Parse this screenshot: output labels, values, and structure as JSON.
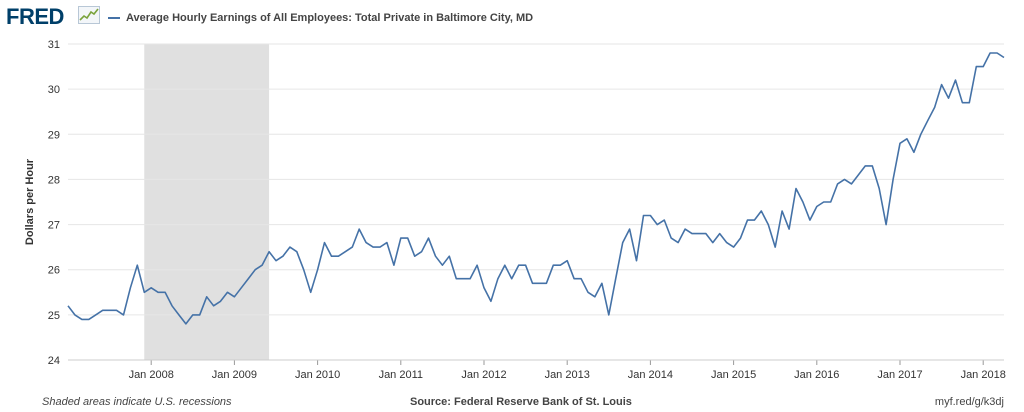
{
  "header": {
    "logo_text": "FRED",
    "logo_icon": "chart-line-icon",
    "legend_label": "Average Hourly Earnings of All Employees: Total Private in Baltimore City, MD"
  },
  "footer": {
    "recession_note": "Shaded areas indicate U.S. recessions",
    "source": "Source: Federal Reserve Bank of St. Louis",
    "link": "myf.red/g/k3dj"
  },
  "colors": {
    "series": "#4572a7",
    "recession": "#e0e0e0",
    "grid": "#e6e6e6",
    "logo": "#003f69"
  },
  "chart_data": {
    "type": "line",
    "title": "",
    "ylabel": "Dollars per Hour",
    "xlabel": "",
    "ylim": [
      24,
      31
    ],
    "y_ticks": [
      24,
      25,
      26,
      27,
      28,
      29,
      30,
      31
    ],
    "x_ticks": [
      "Jan 2008",
      "Jan 2009",
      "Jan 2010",
      "Jan 2011",
      "Jan 2012",
      "Jan 2013",
      "Jan 2014",
      "Jan 2015",
      "Jan 2016",
      "Jan 2017",
      "Jan 2018"
    ],
    "x_start": "2007-01",
    "x_end": "2018-04",
    "grid": "horizontal",
    "legend_position": "top",
    "recessions": [
      {
        "start": "2007-12",
        "end": "2009-06"
      }
    ],
    "series": [
      {
        "name": "Average Hourly Earnings of All Employees: Total Private in Baltimore City, MD",
        "x": [
          "2007-01",
          "2007-02",
          "2007-03",
          "2007-04",
          "2007-05",
          "2007-06",
          "2007-07",
          "2007-08",
          "2007-09",
          "2007-10",
          "2007-11",
          "2007-12",
          "2008-01",
          "2008-02",
          "2008-03",
          "2008-04",
          "2008-05",
          "2008-06",
          "2008-07",
          "2008-08",
          "2008-09",
          "2008-10",
          "2008-11",
          "2008-12",
          "2009-01",
          "2009-02",
          "2009-03",
          "2009-04",
          "2009-05",
          "2009-06",
          "2009-07",
          "2009-08",
          "2009-09",
          "2009-10",
          "2009-11",
          "2009-12",
          "2010-01",
          "2010-02",
          "2010-03",
          "2010-04",
          "2010-05",
          "2010-06",
          "2010-07",
          "2010-08",
          "2010-09",
          "2010-10",
          "2010-11",
          "2010-12",
          "2011-01",
          "2011-02",
          "2011-03",
          "2011-04",
          "2011-05",
          "2011-06",
          "2011-07",
          "2011-08",
          "2011-09",
          "2011-10",
          "2011-11",
          "2011-12",
          "2012-01",
          "2012-02",
          "2012-03",
          "2012-04",
          "2012-05",
          "2012-06",
          "2012-07",
          "2012-08",
          "2012-09",
          "2012-10",
          "2012-11",
          "2012-12",
          "2013-01",
          "2013-02",
          "2013-03",
          "2013-04",
          "2013-05",
          "2013-06",
          "2013-07",
          "2013-08",
          "2013-09",
          "2013-10",
          "2013-11",
          "2013-12",
          "2014-01",
          "2014-02",
          "2014-03",
          "2014-04",
          "2014-05",
          "2014-06",
          "2014-07",
          "2014-08",
          "2014-09",
          "2014-10",
          "2014-11",
          "2014-12",
          "2015-01",
          "2015-02",
          "2015-03",
          "2015-04",
          "2015-05",
          "2015-06",
          "2015-07",
          "2015-08",
          "2015-09",
          "2015-10",
          "2015-11",
          "2015-12",
          "2016-01",
          "2016-02",
          "2016-03",
          "2016-04",
          "2016-05",
          "2016-06",
          "2016-07",
          "2016-08",
          "2016-09",
          "2016-10",
          "2016-11",
          "2016-12",
          "2017-01",
          "2017-02",
          "2017-03",
          "2017-04",
          "2017-05",
          "2017-06",
          "2017-07",
          "2017-08",
          "2017-09",
          "2017-10",
          "2017-11",
          "2017-12",
          "2018-01",
          "2018-02",
          "2018-03",
          "2018-04"
        ],
        "values": [
          25.2,
          25.0,
          24.9,
          24.9,
          25.0,
          25.1,
          25.1,
          25.1,
          25.0,
          25.6,
          26.1,
          25.5,
          25.6,
          25.5,
          25.5,
          25.2,
          25.0,
          24.8,
          25.0,
          25.0,
          25.4,
          25.2,
          25.3,
          25.5,
          25.4,
          25.6,
          25.8,
          26.0,
          26.1,
          26.4,
          26.2,
          26.3,
          26.5,
          26.4,
          26.0,
          25.5,
          26.0,
          26.6,
          26.3,
          26.3,
          26.4,
          26.5,
          26.9,
          26.6,
          26.5,
          26.5,
          26.6,
          26.1,
          26.7,
          26.7,
          26.3,
          26.4,
          26.7,
          26.3,
          26.1,
          26.3,
          25.8,
          25.8,
          25.8,
          26.1,
          25.6,
          25.3,
          25.8,
          26.1,
          25.8,
          26.1,
          26.1,
          25.7,
          25.7,
          25.7,
          26.1,
          26.1,
          26.2,
          25.8,
          25.8,
          25.5,
          25.4,
          25.7,
          25.0,
          25.8,
          26.6,
          26.9,
          26.2,
          27.2,
          27.2,
          27.0,
          27.1,
          26.7,
          26.6,
          26.9,
          26.8,
          26.8,
          26.8,
          26.6,
          26.8,
          26.6,
          26.5,
          26.7,
          27.1,
          27.1,
          27.3,
          27.0,
          26.5,
          27.3,
          26.9,
          27.8,
          27.5,
          27.1,
          27.4,
          27.5,
          27.5,
          27.9,
          28.0,
          27.9,
          28.1,
          28.3,
          28.3,
          27.8,
          27.0,
          28.0,
          28.8,
          28.9,
          28.6,
          29.0,
          29.3,
          29.6,
          30.1,
          29.8,
          30.2,
          29.7,
          29.7,
          30.5,
          30.5,
          30.8,
          30.8,
          30.7
        ]
      }
    ]
  }
}
